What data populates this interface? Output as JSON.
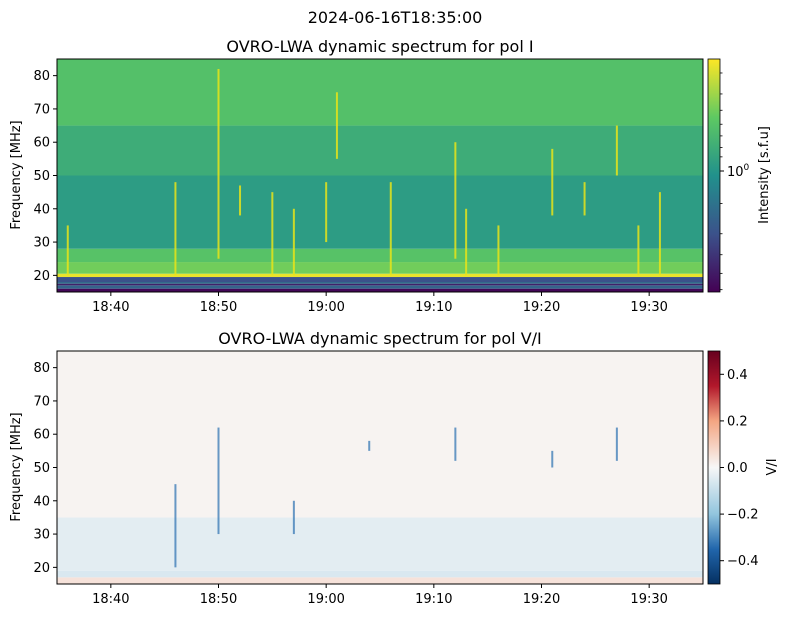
{
  "suptitle": "2024-06-16T18:35:00",
  "chart_data": [
    {
      "type": "heatmap",
      "title": "OVRO-LWA dynamic spectrum for pol I",
      "xlabel": "",
      "ylabel": "Frequency [MHz]",
      "colorbar_label": "Intensity [s.f.u]",
      "colormap": "viridis",
      "color_scale": "log",
      "x_time_range": [
        "18:35",
        "19:35"
      ],
      "x_ticks": [
        "18:40",
        "18:50",
        "19:00",
        "19:10",
        "19:20",
        "19:30"
      ],
      "ylim": [
        15,
        85
      ],
      "y_ticks": [
        20,
        30,
        40,
        50,
        60,
        70,
        80
      ],
      "colorbar_ticks": [
        {
          "value": 1,
          "label": "10",
          "exponent": "0"
        }
      ],
      "bands": [
        {
          "from": 15,
          "to": 16,
          "level": 0.02
        },
        {
          "from": 16,
          "to": 17,
          "level": 0.32
        },
        {
          "from": 17,
          "to": 17.5,
          "level": 0.1
        },
        {
          "from": 17.5,
          "to": 18,
          "level": 0.35
        },
        {
          "from": 18,
          "to": 19.5,
          "level": 0.25
        },
        {
          "from": 19.5,
          "to": 20.5,
          "level": 0.97
        },
        {
          "from": 20.5,
          "to": 24,
          "level": 0.78
        },
        {
          "from": 24,
          "to": 28,
          "level": 0.72
        },
        {
          "from": 28,
          "to": 50,
          "level": 0.55
        },
        {
          "from": 50,
          "to": 65,
          "level": 0.62
        },
        {
          "from": 65,
          "to": 85,
          "level": 0.71
        }
      ],
      "bursts": [
        {
          "time": "18:36",
          "freq_low": 20,
          "freq_high": 35
        },
        {
          "time": "18:46",
          "freq_low": 20,
          "freq_high": 48
        },
        {
          "time": "18:50",
          "freq_low": 25,
          "freq_high": 82
        },
        {
          "time": "18:52",
          "freq_low": 38,
          "freq_high": 47
        },
        {
          "time": "18:55",
          "freq_low": 20,
          "freq_high": 45
        },
        {
          "time": "18:57",
          "freq_low": 20,
          "freq_high": 40
        },
        {
          "time": "19:00",
          "freq_low": 30,
          "freq_high": 48
        },
        {
          "time": "19:01",
          "freq_low": 55,
          "freq_high": 75
        },
        {
          "time": "19:06",
          "freq_low": 20,
          "freq_high": 48
        },
        {
          "time": "19:12",
          "freq_low": 25,
          "freq_high": 60
        },
        {
          "time": "19:13",
          "freq_low": 20,
          "freq_high": 40
        },
        {
          "time": "19:16",
          "freq_low": 20,
          "freq_high": 35
        },
        {
          "time": "19:21",
          "freq_low": 38,
          "freq_high": 58
        },
        {
          "time": "19:24",
          "freq_low": 38,
          "freq_high": 48
        },
        {
          "time": "19:27",
          "freq_low": 50,
          "freq_high": 65
        },
        {
          "time": "19:29",
          "freq_low": 20,
          "freq_high": 35
        },
        {
          "time": "19:31",
          "freq_low": 20,
          "freq_high": 45
        }
      ]
    },
    {
      "type": "heatmap",
      "title": "OVRO-LWA dynamic spectrum for pol V/I",
      "xlabel": "",
      "ylabel": "Frequency [MHz]",
      "colorbar_label": "V/I",
      "colormap": "RdBu_r",
      "color_scale": "linear",
      "clim": [
        -0.5,
        0.5
      ],
      "x_time_range": [
        "18:35",
        "19:35"
      ],
      "x_ticks": [
        "18:40",
        "18:50",
        "19:00",
        "19:10",
        "19:20",
        "19:30"
      ],
      "ylim": [
        15,
        85
      ],
      "y_ticks": [
        20,
        30,
        40,
        50,
        60,
        70,
        80
      ],
      "colorbar_ticks": [
        0.4,
        0.2,
        0.0,
        -0.2,
        -0.4
      ],
      "colorbar_tick_labels": [
        "0.4",
        "0.2",
        "0.0",
        "−0.2",
        "−0.4"
      ],
      "bands": [
        {
          "from": 15,
          "to": 17,
          "value": 0.05
        },
        {
          "from": 17,
          "to": 19,
          "value": -0.06
        },
        {
          "from": 19,
          "to": 35,
          "value": -0.04
        },
        {
          "from": 35,
          "to": 85,
          "value": 0.01
        }
      ],
      "bursts": [
        {
          "time": "18:46",
          "freq_low": 20,
          "freq_high": 45
        },
        {
          "time": "18:50",
          "freq_low": 30,
          "freq_high": 62
        },
        {
          "time": "18:57",
          "freq_low": 30,
          "freq_high": 40
        },
        {
          "time": "19:04",
          "freq_low": 55,
          "freq_high": 58
        },
        {
          "time": "19:12",
          "freq_low": 52,
          "freq_high": 62
        },
        {
          "time": "19:21",
          "freq_low": 50,
          "freq_high": 55
        },
        {
          "time": "19:27",
          "freq_low": 52,
          "freq_high": 62
        }
      ]
    }
  ]
}
